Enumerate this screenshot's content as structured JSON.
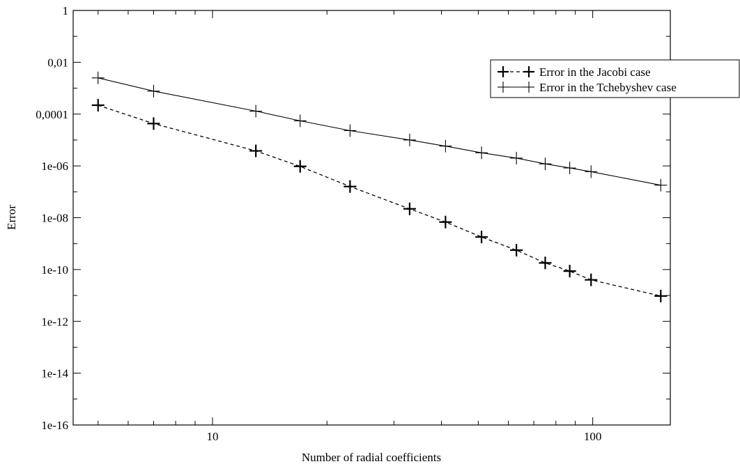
{
  "chart_data": {
    "type": "line",
    "xscale": "log",
    "yscale": "log",
    "xlabel": "Number of radial coefficients",
    "ylabel": "Error",
    "xlim": [
      4.3,
      160
    ],
    "ylim": [
      1e-16,
      1
    ],
    "xticks": [
      {
        "value": 10,
        "label": "10"
      },
      {
        "value": 100,
        "label": "100"
      }
    ],
    "yticks": [
      {
        "value": 1,
        "label": "1"
      },
      {
        "value": 0.01,
        "label": "0,01"
      },
      {
        "value": 0.0001,
        "label": "0,0001"
      },
      {
        "value": 1e-06,
        "label": "1e-06"
      },
      {
        "value": 1e-08,
        "label": "1e-08"
      },
      {
        "value": 1e-10,
        "label": "1e-10"
      },
      {
        "value": 1e-12,
        "label": "1e-12"
      },
      {
        "value": 1e-14,
        "label": "1e-14"
      },
      {
        "value": 1e-16,
        "label": "1e-16"
      }
    ],
    "legend_position": "top-right",
    "grid": false,
    "series": [
      {
        "name": "Error in the Jacobi case",
        "style": "dashed",
        "marker": "plus-bold",
        "color": "#000000",
        "x": [
          5,
          7,
          13,
          17,
          23,
          33,
          41,
          51,
          63,
          75,
          87,
          99,
          151
        ],
        "y": [
          0.00022,
          4.3e-05,
          3.8e-06,
          9.6e-07,
          1.6e-07,
          2.2e-08,
          6.8e-09,
          1.8e-09,
          5.6e-10,
          1.8e-10,
          8.7e-11,
          4e-11,
          9.5e-12
        ]
      },
      {
        "name": "Error in the Tchebyshev case",
        "style": "solid",
        "marker": "plus-thin",
        "color": "#000000",
        "x": [
          5,
          7,
          13,
          17,
          23,
          33,
          41,
          51,
          63,
          75,
          87,
          99,
          151
        ],
        "y": [
          0.0025,
          0.00077,
          0.00013,
          5.5e-05,
          2.3e-05,
          1e-05,
          5.8e-06,
          3.2e-06,
          2e-06,
          1.2e-06,
          8.3e-07,
          6e-07,
          1.8e-07
        ]
      }
    ]
  }
}
